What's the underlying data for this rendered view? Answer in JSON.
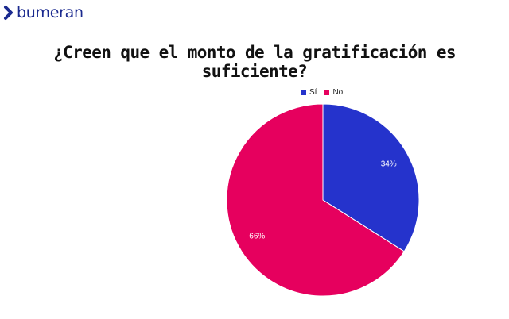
{
  "brand": {
    "name": "bumeran",
    "icon": "chevron-right-icon",
    "color": "#1b2a8f"
  },
  "title": "¿Creen que el monto de la gratificación es suficiente?",
  "chart_data": {
    "type": "pie",
    "title": "¿Creen que el monto de la gratificación es suficiente?",
    "legend_position": "top",
    "categories": [
      "Sí",
      "No"
    ],
    "values": [
      34,
      66
    ],
    "labels": [
      "34%",
      "66%"
    ],
    "colors": [
      "#2533cc",
      "#e6005e"
    ],
    "start_angle": "12 o'clock",
    "direction": "clockwise"
  }
}
